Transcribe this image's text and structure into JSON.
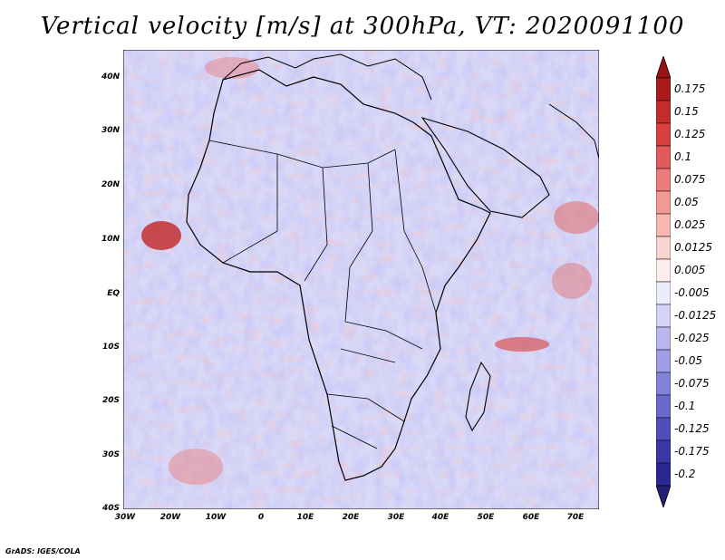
{
  "title": "Vertical velocity [m/s] at 300hPa, VT: 2020091100",
  "lat_ticks": [
    "40N",
    "30N",
    "20N",
    "10N",
    "EQ",
    "10S",
    "20S",
    "30S",
    "40S"
  ],
  "lon_ticks": [
    "30W",
    "20W",
    "10W",
    "0",
    "10E",
    "20E",
    "30E",
    "40E",
    "50E",
    "60E",
    "70E"
  ],
  "colorbar": {
    "labels": [
      "0.175",
      "0.15",
      "0.125",
      "0.1",
      "0.075",
      "0.05",
      "0.025",
      "0.0125",
      "0.005",
      "-0.005",
      "-0.0125",
      "-0.025",
      "-0.05",
      "-0.075",
      "-0.1",
      "-0.125",
      "-0.175",
      "-0.2"
    ],
    "colors": [
      "#aa1a1a",
      "#c42b2b",
      "#d84040",
      "#e35a5a",
      "#ec7a78",
      "#f29a96",
      "#f6b8b3",
      "#f9d3cf",
      "#fdeeed",
      "#ecedfc",
      "#d4d4f6",
      "#b9b8ee",
      "#9e9de5",
      "#8483da",
      "#6a69cc",
      "#4f4eba",
      "#3a38a6",
      "#2a2892"
    ],
    "top_arrow_color": "#9a1212",
    "bottom_arrow_color": "#22207a"
  },
  "credit": "GrADS: IGES/COLA"
}
